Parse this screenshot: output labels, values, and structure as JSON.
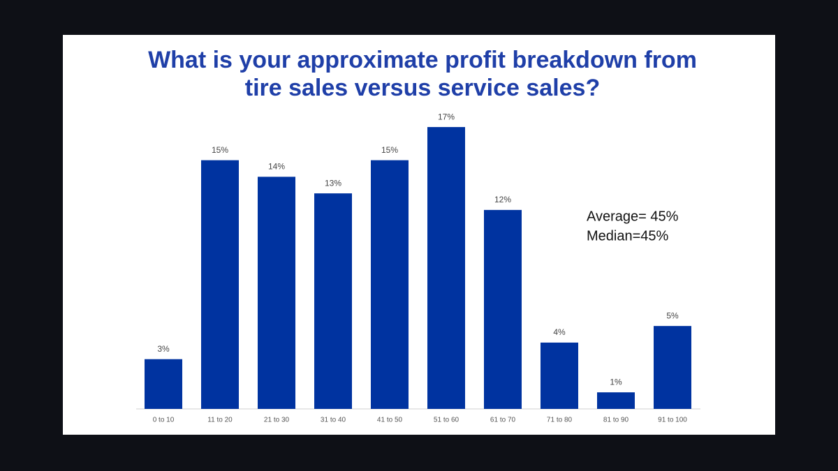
{
  "chart_data": {
    "type": "bar",
    "title": "What is your approximate profit breakdown from tire sales versus service sales?",
    "categories": [
      "0 to 10",
      "11 to 20",
      "21 to 30",
      "31 to 40",
      "41 to 50",
      "51 to 60",
      "61 to 70",
      "71 to 80",
      "81 to 90",
      "91 to 100"
    ],
    "values": [
      3,
      15,
      14,
      13,
      15,
      17,
      12,
      4,
      1,
      5
    ],
    "value_labels": [
      "3%",
      "15%",
      "14%",
      "13%",
      "15%",
      "17%",
      "12%",
      "4%",
      "1%",
      "5%"
    ],
    "color": "#0033a0",
    "annotations": [
      "Average= 45%",
      "Median=45%"
    ]
  }
}
